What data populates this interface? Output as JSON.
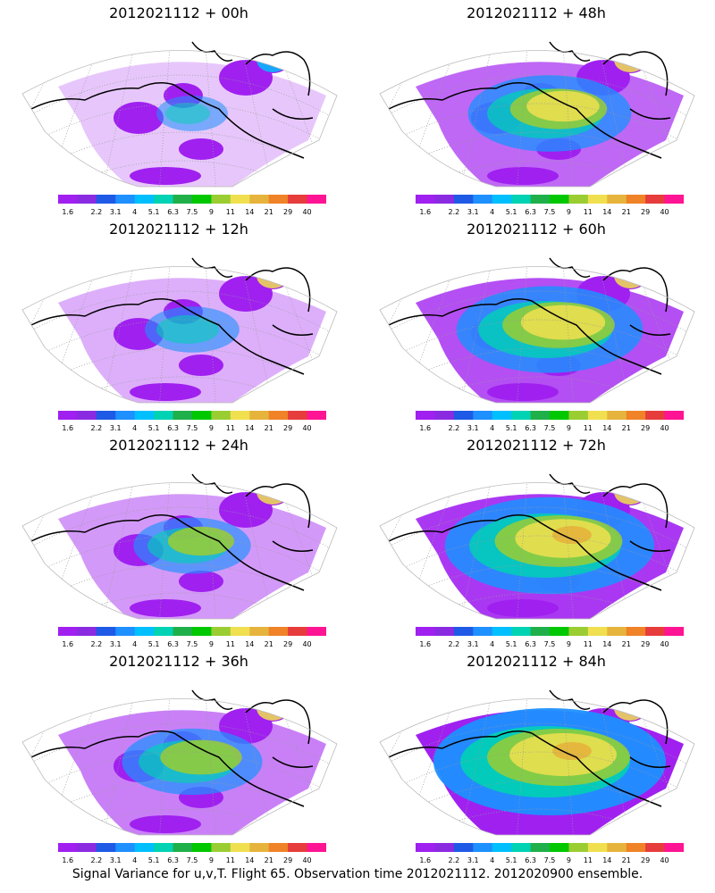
{
  "panels": [
    {
      "title": "2012021112 + 00h",
      "lead_hours": 0
    },
    {
      "title": "2012021112 + 48h",
      "lead_hours": 48
    },
    {
      "title": "2012021112 + 12h",
      "lead_hours": 12
    },
    {
      "title": "2012021112 + 60h",
      "lead_hours": 60
    },
    {
      "title": "2012021112 + 24h",
      "lead_hours": 24
    },
    {
      "title": "2012021112 + 72h",
      "lead_hours": 72
    },
    {
      "title": "2012021112 + 36h",
      "lead_hours": 36
    },
    {
      "title": "2012021112 + 84h",
      "lead_hours": 84
    }
  ],
  "colorbar": {
    "labels": [
      "1.6",
      "2.2",
      "3.1",
      "4",
      "5.1",
      "6.3",
      "7.5",
      "9",
      "11",
      "14",
      "21",
      "29",
      "40"
    ],
    "colors": [
      "#a020f0",
      "#8a2be2",
      "#1e5ae6",
      "#1e90ff",
      "#00bfff",
      "#00d2b4",
      "#20b04a",
      "#00c800",
      "#9acd32",
      "#f0e050",
      "#e6b43c",
      "#f08228",
      "#e63c3c",
      "#ff1493"
    ]
  },
  "footer": "Signal Variance for u,v,T. Flight 65. Observation time 2012021112. 2012020900 ensemble."
}
